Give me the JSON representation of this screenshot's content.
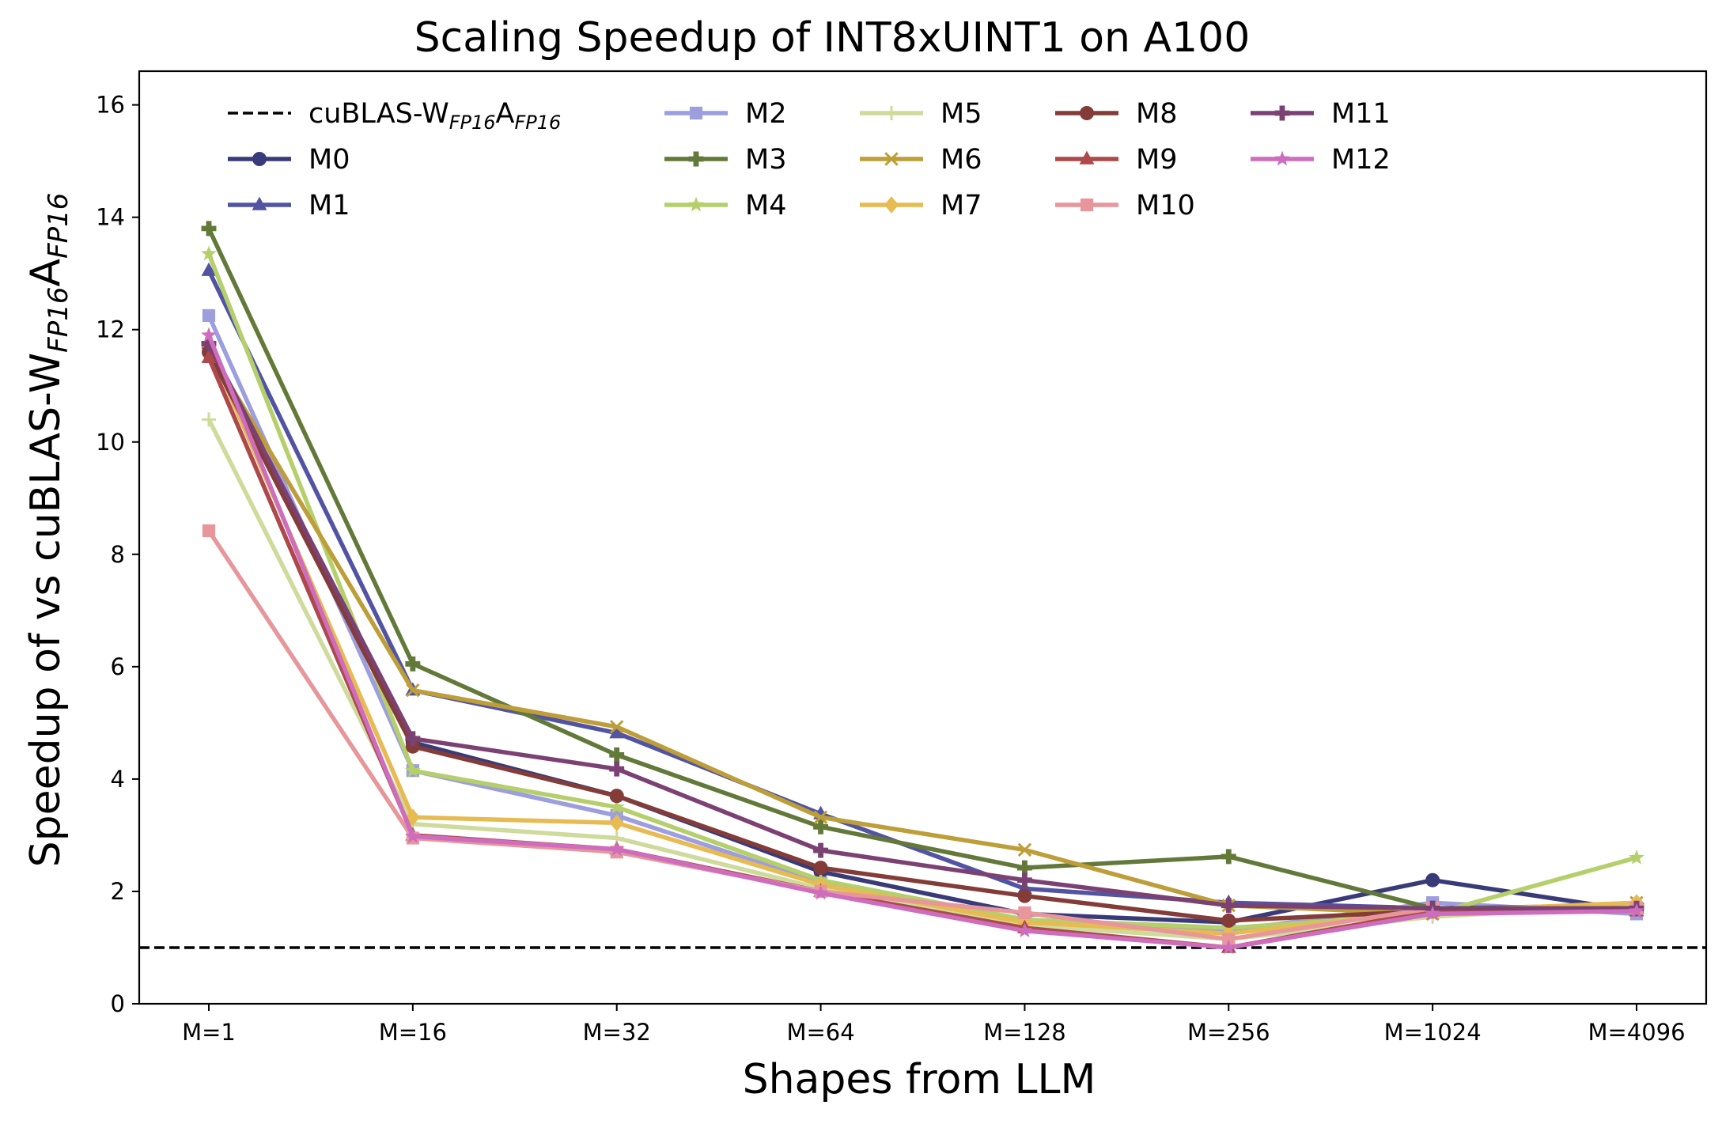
{
  "chart_data": {
    "type": "line",
    "title": "Scaling Speedup of INT8xUINT1 on A100",
    "xlabel": "Shapes from LLM",
    "ylabel": {
      "main": "Speedup of vs cuBLAS-W",
      "sub1": "FP16",
      "mid": "A",
      "sub2": "FP16"
    },
    "categories": [
      "M=1",
      "M=16",
      "M=32",
      "M=64",
      "M=128",
      "M=256",
      "M=1024",
      "M=4096"
    ],
    "ylim": [
      0,
      16.6
    ],
    "yticks": [
      0,
      2,
      4,
      6,
      8,
      10,
      12,
      14,
      16
    ],
    "grid": false,
    "legend_position": "top",
    "baseline": {
      "label_main": "cuBLAS-W",
      "label_sub1": "FP16",
      "label_mid": "A",
      "label_sub2": "FP16",
      "value": 1.0,
      "color": "#000000",
      "style": "dashed"
    },
    "series": [
      {
        "name": "M0",
        "color": "#393b79",
        "marker": "circle",
        "values": [
          11.7,
          4.65,
          3.7,
          2.35,
          1.6,
          1.45,
          2.2,
          1.65
        ]
      },
      {
        "name": "M1",
        "color": "#5254a3",
        "marker": "triangle",
        "values": [
          13.05,
          5.58,
          4.82,
          3.38,
          2.05,
          1.8,
          1.7,
          1.7
        ]
      },
      {
        "name": "M2",
        "color": "#9c9ede",
        "marker": "square",
        "values": [
          12.25,
          4.15,
          3.35,
          2.15,
          1.5,
          1.3,
          1.8,
          1.6
        ]
      },
      {
        "name": "M3",
        "color": "#637939",
        "marker": "plus",
        "values": [
          13.8,
          6.05,
          4.43,
          3.15,
          2.42,
          2.62,
          1.7,
          1.75
        ]
      },
      {
        "name": "M4",
        "color": "#b5cf6b",
        "marker": "star",
        "values": [
          13.35,
          4.15,
          3.5,
          2.2,
          1.5,
          1.35,
          1.6,
          2.6
        ]
      },
      {
        "name": "M5",
        "color": "#cedb9c",
        "marker": "thin-plus",
        "values": [
          10.4,
          3.2,
          2.95,
          2.05,
          1.4,
          1.15,
          1.55,
          1.75
        ]
      },
      {
        "name": "M6",
        "color": "#bd9e39",
        "marker": "x",
        "values": [
          11.65,
          5.58,
          4.93,
          3.32,
          2.74,
          1.75,
          1.6,
          1.8
        ]
      },
      {
        "name": "M7",
        "color": "#e7ba52",
        "marker": "diamond",
        "values": [
          11.7,
          3.32,
          3.22,
          2.12,
          1.45,
          1.25,
          1.65,
          1.8
        ]
      },
      {
        "name": "M8",
        "color": "#843c39",
        "marker": "circle",
        "values": [
          11.6,
          4.58,
          3.7,
          2.42,
          1.92,
          1.48,
          1.65,
          1.7
        ]
      },
      {
        "name": "M9",
        "color": "#ad494a",
        "marker": "triangle",
        "values": [
          11.5,
          3.0,
          2.75,
          2.0,
          1.35,
          1.0,
          1.65,
          1.65
        ]
      },
      {
        "name": "M10",
        "color": "#e7969c",
        "marker": "square",
        "values": [
          8.42,
          2.95,
          2.7,
          2.0,
          1.62,
          1.15,
          1.7,
          1.7
        ]
      },
      {
        "name": "M11",
        "color": "#7b4173",
        "marker": "plus",
        "values": [
          11.75,
          4.72,
          4.18,
          2.73,
          2.2,
          1.75,
          1.7,
          1.7
        ]
      },
      {
        "name": "M12",
        "color": "#ce6dbd",
        "marker": "star",
        "values": [
          11.9,
          2.98,
          2.75,
          1.97,
          1.3,
          1.0,
          1.6,
          1.65
        ]
      }
    ]
  }
}
